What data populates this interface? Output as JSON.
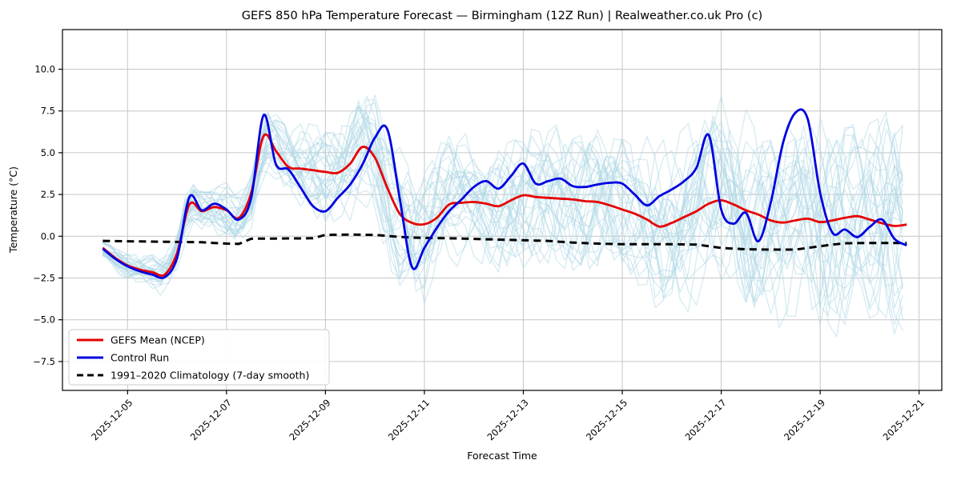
{
  "title": "GEFS 850 hPa Temperature Forecast — Birmingham (12Z Run) | Realweather.co.uk Pro (c)",
  "axes": {
    "x_label": "Forecast Time",
    "y_label": "Temperature (°C)",
    "x_ticks": [
      {
        "label": "2025-12-05",
        "day": 0.5
      },
      {
        "label": "2025-12-07",
        "day": 2.5
      },
      {
        "label": "2025-12-09",
        "day": 4.5
      },
      {
        "label": "2025-12-11",
        "day": 6.5
      },
      {
        "label": "2025-12-13",
        "day": 8.5
      },
      {
        "label": "2025-12-15",
        "day": 10.5
      },
      {
        "label": "2025-12-17",
        "day": 12.5
      },
      {
        "label": "2025-12-19",
        "day": 14.5
      },
      {
        "label": "2025-12-21",
        "day": 16.5
      }
    ],
    "y_ticks": [
      {
        "label": "10.0",
        "value": 10.0
      },
      {
        "label": "7.5",
        "value": 7.5
      },
      {
        "label": "5.0",
        "value": 5.0
      },
      {
        "label": "2.5",
        "value": 2.5
      },
      {
        "label": "0.0",
        "value": 0.0
      },
      {
        "label": "−2.5",
        "value": -2.5
      },
      {
        "label": "−5.0",
        "value": -5.0
      },
      {
        "label": "−7.5",
        "value": -7.5
      }
    ],
    "y_range": [
      -9.2,
      12.4
    ],
    "grid": true
  },
  "legend": {
    "position": "lower-left",
    "items": [
      {
        "label": "GEFS Mean (NCEP)",
        "color": "#e60000",
        "dashed": false
      },
      {
        "label": "Control Run",
        "color": "#0000e0",
        "dashed": false
      },
      {
        "label": "1991–2020 Climatology (7-day smooth)",
        "color": "#000000",
        "dashed": true
      }
    ]
  },
  "chart_data": {
    "type": "line",
    "title": "GEFS 850 hPa Temperature Forecast — Birmingham (12Z Run) | Realweather.co.uk Pro (c)",
    "xlabel": "Forecast Time",
    "ylabel": "Temperature (°C)",
    "x_start": "2025-12-04 12:00",
    "x_step_hours": 6,
    "x_span_days": 16.25,
    "series": [
      {
        "name": "GEFS Mean (NCEP)",
        "color": "#e60000",
        "width": 2.8,
        "smooth": true,
        "values": [
          -0.7,
          -1.3,
          -1.75,
          -2.0,
          -2.15,
          -2.3,
          -1.0,
          1.9,
          1.5,
          1.75,
          1.55,
          1.1,
          2.6,
          6.0,
          5.1,
          4.15,
          4.05,
          3.95,
          3.85,
          3.8,
          4.35,
          5.35,
          4.7,
          2.9,
          1.35,
          0.8,
          0.72,
          1.1,
          1.9,
          2.0,
          2.05,
          1.95,
          1.8,
          2.15,
          2.45,
          2.35,
          2.3,
          2.25,
          2.2,
          2.1,
          2.05,
          1.85,
          1.6,
          1.35,
          1.0,
          0.58,
          0.8,
          1.15,
          1.5,
          1.95,
          2.15,
          1.9,
          1.55,
          1.3,
          0.95,
          0.82,
          0.95,
          1.05,
          0.85,
          0.95,
          1.1,
          1.2,
          1.0,
          0.78,
          0.62,
          0.7
        ]
      },
      {
        "name": "Control Run",
        "color": "#0000e0",
        "width": 2.8,
        "smooth": true,
        "values": [
          -0.75,
          -1.35,
          -1.8,
          -2.1,
          -2.3,
          -2.45,
          -1.3,
          2.35,
          1.55,
          1.95,
          1.6,
          1.0,
          2.3,
          7.25,
          4.3,
          4.0,
          2.9,
          1.8,
          1.5,
          2.3,
          3.1,
          4.3,
          5.9,
          6.4,
          2.3,
          -1.85,
          -0.7,
          0.5,
          1.5,
          2.2,
          2.95,
          3.3,
          2.85,
          3.6,
          4.35,
          3.15,
          3.3,
          3.45,
          3.0,
          2.95,
          3.1,
          3.2,
          3.15,
          2.5,
          1.85,
          2.4,
          2.8,
          3.3,
          4.1,
          6.05,
          1.6,
          0.75,
          1.4,
          -0.3,
          2.0,
          5.6,
          7.4,
          7.0,
          2.6,
          0.2,
          0.4,
          -0.05,
          0.55,
          1.0,
          -0.15,
          -0.55
        ]
      },
      {
        "name": "1991–2020 Climatology (7-day smooth)",
        "color": "#000000",
        "width": 3.0,
        "smooth": false,
        "dash": "9 6",
        "values": [
          -0.28,
          -0.29,
          -0.3,
          -0.31,
          -0.32,
          -0.33,
          -0.34,
          -0.35,
          -0.36,
          -0.4,
          -0.44,
          -0.46,
          -0.15,
          -0.14,
          -0.14,
          -0.13,
          -0.13,
          -0.12,
          0.08,
          0.09,
          0.1,
          0.09,
          0.08,
          0.02,
          -0.04,
          -0.08,
          -0.1,
          -0.11,
          -0.12,
          -0.14,
          -0.16,
          -0.18,
          -0.2,
          -0.22,
          -0.24,
          -0.26,
          -0.28,
          -0.33,
          -0.38,
          -0.41,
          -0.44,
          -0.46,
          -0.48,
          -0.48,
          -0.48,
          -0.48,
          -0.48,
          -0.49,
          -0.5,
          -0.6,
          -0.7,
          -0.74,
          -0.78,
          -0.79,
          -0.8,
          -0.8,
          -0.8,
          -0.7,
          -0.6,
          -0.5,
          -0.42,
          -0.41,
          -0.4,
          -0.4,
          -0.4,
          -0.4
        ]
      }
    ],
    "ensemble": {
      "name": "GEFS ensemble members",
      "count": 30,
      "color": "#add8e6",
      "opacity": 0.5,
      "width": 1.3,
      "spread_by_day": [
        0.45,
        0.8,
        1.0,
        1.4,
        1.9,
        2.6,
        3.3,
        2.9,
        3.0,
        3.2,
        3.4,
        3.6,
        3.9,
        4.2,
        4.5,
        4.8,
        5.0
      ]
    }
  }
}
